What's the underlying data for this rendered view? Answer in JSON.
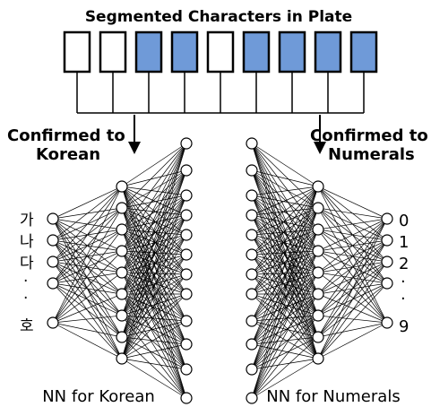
{
  "title": "Segmented Characters in Plate",
  "plate": {
    "boxes": [
      false,
      false,
      true,
      true,
      false,
      true,
      true,
      true,
      true
    ],
    "filled_color": "#6f9ad8",
    "empty_color": "#ffffff"
  },
  "left_route_label": [
    "Confirmed to",
    "Korean"
  ],
  "right_route_label": [
    "Confirmed to",
    "Numerals"
  ],
  "korean_input_labels": [
    "가",
    "나",
    "다",
    "·",
    "·",
    "호"
  ],
  "numeral_output_labels": [
    "0",
    "1",
    "2",
    "·",
    "·",
    "9"
  ],
  "nn_korean_caption": "NN for Korean",
  "nn_numerals_caption": "NN for Numerals"
}
